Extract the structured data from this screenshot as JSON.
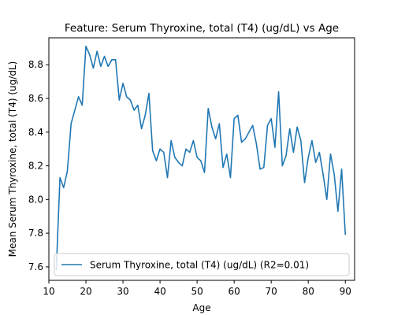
{
  "chart_data": {
    "type": "line",
    "title": "Feature: Serum Thyroxine, total (T4) (ug/dL) vs Age",
    "xlabel": "Age",
    "ylabel": "Mean Serum Thyroxine, total (T4) (ug/dL)",
    "xlim": [
      10,
      92.5
    ],
    "ylim": [
      7.52,
      8.96
    ],
    "xticks": [
      10,
      20,
      30,
      40,
      50,
      60,
      70,
      80,
      90
    ],
    "yticks": [
      7.6,
      7.8,
      8.0,
      8.2,
      8.4,
      8.6,
      8.8
    ],
    "xtick_labels": [
      "10",
      "20",
      "30",
      "40",
      "50",
      "60",
      "70",
      "80",
      "90"
    ],
    "ytick_labels": [
      "7.6",
      "7.8",
      "8.0",
      "8.2",
      "8.4",
      "8.6",
      "8.8"
    ],
    "grid": false,
    "legend_position": "lower-left",
    "series": [
      {
        "name": "Serum Thyroxine, total (T4) (ug/dL) (R2=0.01)",
        "color": "#1f77b4",
        "x": [
          12,
          13,
          14,
          15,
          16,
          17,
          18,
          19,
          20,
          21,
          22,
          23,
          24,
          25,
          26,
          27,
          28,
          29,
          30,
          31,
          32,
          33,
          34,
          35,
          36,
          37,
          38,
          39,
          40,
          41,
          42,
          43,
          44,
          45,
          46,
          47,
          48,
          49,
          50,
          51,
          52,
          53,
          54,
          55,
          56,
          57,
          58,
          59,
          60,
          61,
          62,
          63,
          64,
          65,
          66,
          67,
          68,
          69,
          70,
          71,
          72,
          73,
          74,
          75,
          76,
          77,
          78,
          79,
          80,
          81,
          82,
          83,
          84,
          85,
          86,
          87,
          88,
          89,
          90
        ],
        "values": [
          7.58,
          8.13,
          8.07,
          8.17,
          8.45,
          8.53,
          8.61,
          8.56,
          8.91,
          8.86,
          8.78,
          8.88,
          8.79,
          8.85,
          8.79,
          8.83,
          8.83,
          8.59,
          8.69,
          8.61,
          8.59,
          8.53,
          8.56,
          8.42,
          8.5,
          8.63,
          8.29,
          8.23,
          8.3,
          8.28,
          8.13,
          8.35,
          8.25,
          8.22,
          8.2,
          8.3,
          8.28,
          8.35,
          8.25,
          8.23,
          8.16,
          8.54,
          8.43,
          8.36,
          8.45,
          8.19,
          8.27,
          8.13,
          8.48,
          8.5,
          8.34,
          8.36,
          8.4,
          8.44,
          8.33,
          8.18,
          8.19,
          8.44,
          8.48,
          8.31,
          8.64,
          8.2,
          8.26,
          8.42,
          8.28,
          8.43,
          8.35,
          8.1,
          8.25,
          8.35,
          8.22,
          8.28,
          8.15,
          8.0,
          8.27,
          8.15,
          7.93,
          8.18,
          7.79
        ]
      }
    ]
  }
}
